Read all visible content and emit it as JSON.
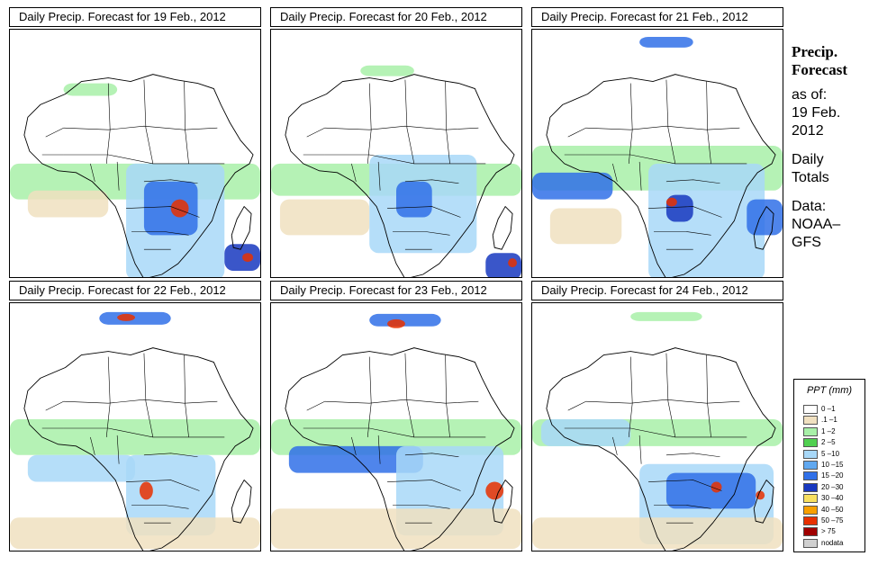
{
  "panels": [
    {
      "title": "Daily Precip. Forecast for  19 Feb., 2012"
    },
    {
      "title": "Daily Precip. Forecast for  20 Feb., 2012"
    },
    {
      "title": "Daily Precip. Forecast for  21 Feb., 2012"
    },
    {
      "title": "Daily Precip. Forecast for  22 Feb., 2012"
    },
    {
      "title": "Daily Precip. Forecast for  23 Feb., 2012"
    },
    {
      "title": "Daily Precip. Forecast for  24 Feb., 2012"
    }
  ],
  "sidebar": {
    "title_line1": "Precip.",
    "title_line2": "Forecast",
    "asof_label": "as of:",
    "date_line1": "19 Feb.",
    "date_line2": "2012",
    "totals_line1": "Daily",
    "totals_line2": "Totals",
    "data_line1": "Data:",
    "data_line2": "NOAA–",
    "data_line3": "GFS"
  },
  "legend": {
    "title": "PPT (mm)",
    "items": [
      {
        "label": "0 –1",
        "color": "#ffffff"
      },
      {
        "label": ".1 –1",
        "color": "#f0e0c0"
      },
      {
        "label": "1 –2",
        "color": "#a8f0a8"
      },
      {
        "label": "2 –5",
        "color": "#50d050"
      },
      {
        "label": "5 –10",
        "color": "#a8d8f8"
      },
      {
        "label": "10 –15",
        "color": "#60a8f0"
      },
      {
        "label": "15 –20",
        "color": "#3070e8"
      },
      {
        "label": "20 –30",
        "color": "#1838c0"
      },
      {
        "label": "30 –40",
        "color": "#f8e060"
      },
      {
        "label": "40 –50",
        "color": "#f8a000"
      },
      {
        "label": "50 –75",
        "color": "#e83000"
      },
      {
        "label": "> 75",
        "color": "#a00000"
      },
      {
        "label": "nodata",
        "color": "#d0d0d0"
      }
    ]
  }
}
